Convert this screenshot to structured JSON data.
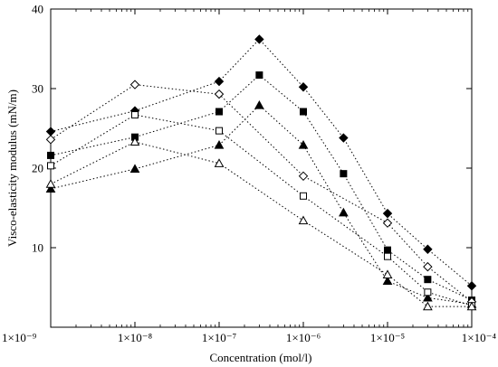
{
  "chart_data": {
    "type": "scatter",
    "title": "",
    "xlabel": "Concentration (mol/l)",
    "ylabel": "Visco-elasticity modulus (mN/m)",
    "xscale": "log",
    "xlim": [
      1e-09,
      0.0001
    ],
    "ylim": [
      0,
      40
    ],
    "xticks": [
      1e-09,
      1e-08,
      1e-07,
      1e-06,
      1e-05,
      0.0001
    ],
    "xtick_labels": [
      "1×10⁻⁹",
      "1×10⁻⁸",
      "1×10⁻⁷",
      "1×10⁻⁶",
      "1×10⁻⁵",
      "1×10⁻⁴"
    ],
    "yticks": [
      10,
      20,
      30,
      40
    ],
    "ytick_labels": [
      "10",
      "20",
      "30",
      "40"
    ],
    "grid": false,
    "legend": false,
    "series": [
      {
        "marker": "filled-diamond",
        "x": [
          1e-09,
          1e-08,
          1e-07,
          3e-07,
          1e-06,
          3e-06,
          1e-05,
          3e-05,
          0.0001
        ],
        "y": [
          24.6,
          27.2,
          30.9,
          36.2,
          30.2,
          23.8,
          14.3,
          9.8,
          5.2
        ]
      },
      {
        "marker": "filled-square",
        "x": [
          1e-09,
          1e-08,
          1e-07,
          3e-07,
          1e-06,
          3e-06,
          1e-05,
          3e-05,
          0.0001
        ],
        "y": [
          21.6,
          23.9,
          27.1,
          31.7,
          27.1,
          19.3,
          9.7,
          6.0,
          3.4
        ]
      },
      {
        "marker": "filled-triangle",
        "x": [
          1e-09,
          1e-08,
          1e-07,
          3e-07,
          1e-06,
          3e-06,
          1e-05,
          3e-05,
          0.0001
        ],
        "y": [
          17.4,
          19.9,
          22.9,
          27.9,
          22.9,
          14.4,
          5.8,
          3.7,
          2.9
        ]
      },
      {
        "marker": "open-diamond",
        "x": [
          1e-09,
          1e-08,
          1e-07,
          1e-06,
          1e-05,
          3e-05,
          0.0001
        ],
        "y": [
          23.6,
          30.5,
          29.3,
          19.0,
          13.1,
          7.6,
          3.2
        ]
      },
      {
        "marker": "open-square",
        "x": [
          1e-09,
          1e-08,
          1e-07,
          1e-06,
          1e-05,
          3e-05,
          0.0001
        ],
        "y": [
          20.3,
          26.7,
          24.7,
          16.5,
          8.9,
          4.4,
          2.7
        ]
      },
      {
        "marker": "open-triangle",
        "x": [
          1e-09,
          1e-08,
          1e-07,
          1e-06,
          1e-05,
          3e-05,
          0.0001
        ],
        "y": [
          18.0,
          23.3,
          20.6,
          13.4,
          6.6,
          2.6,
          2.6
        ]
      }
    ]
  }
}
